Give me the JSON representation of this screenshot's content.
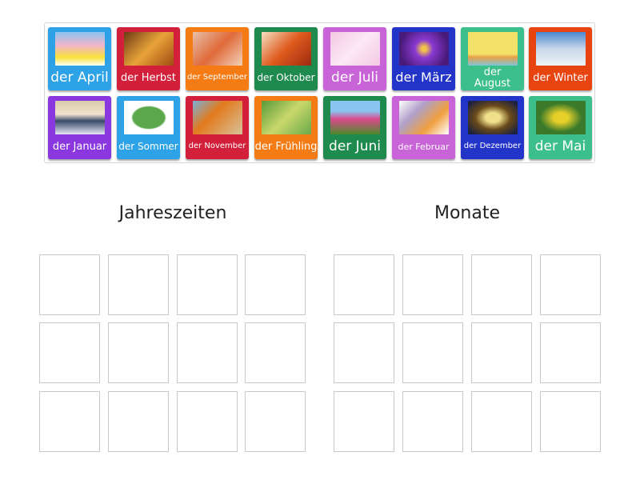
{
  "cards": [
    {
      "label": "der April",
      "color": "#2da2e6",
      "size": 17,
      "img": "linear-gradient(#8bc3f0 0%,#f2b6c9 40%,#f7e23a 75%,#fff 100%)"
    },
    {
      "label": "der Herbst",
      "color": "#d21f3a",
      "size": 13,
      "img": "linear-gradient(135deg,#6b3a12,#e8a33a,#a14a12)"
    },
    {
      "label": "der September",
      "color": "#f57c14",
      "size": 10,
      "img": "linear-gradient(135deg,#e8c0a8,#e06a3a,#f2d2b8)"
    },
    {
      "label": "der Oktober",
      "color": "#1f8a4d",
      "size": 12,
      "img": "linear-gradient(135deg,#f3e0c0,#e05a1e,#9a2a10)"
    },
    {
      "label": "der Juli",
      "color": "#c963d8",
      "size": 17,
      "img": "linear-gradient(135deg,#f3c7e3,#fbe9f4,#f3c7e3)"
    },
    {
      "label": "der März",
      "color": "#2334c9",
      "size": 16,
      "img": "radial-gradient(circle,#f3c24a 8%,#8a3ad0 30%,#4a1a7a 80%)"
    },
    {
      "label": "der\nAugust",
      "color": "#3dbf8c",
      "size": 13,
      "img": "linear-gradient(#f4e16a 65%,#e8a04a 75%,#7cc6d8 100%)"
    },
    {
      "label": "der Winter",
      "color": "#e84410",
      "size": 13,
      "img": "linear-gradient(#4a88d0 0%,#c8d8ea 50%,#eef3f8 100%)"
    },
    {
      "label": "der Januar",
      "color": "#8a37e0",
      "size": 13,
      "img": "linear-gradient(#d8c9a8,#f0e4d0 40%,#3a4a6a 60%,#e6e8f6 100%)"
    },
    {
      "label": "der Sommer",
      "color": "#2da2e6",
      "size": 12,
      "img": "radial-gradient(#5aa84a 45%,#fff 50%)"
    },
    {
      "label": "der November",
      "color": "#d21f3a",
      "size": 10,
      "img": "linear-gradient(135deg,#7ab0d8,#e27a1e 40%,#d8c29a 100%)"
    },
    {
      "label": "der Frühling",
      "color": "#f57c14",
      "size": 13,
      "img": "linear-gradient(135deg,#5a9a3a,#c8d86a,#6aa84a)"
    },
    {
      "label": "der Juni",
      "color": "#1f8a4d",
      "size": 17,
      "img": "linear-gradient(#8ac4f0 30%,#d84a8a 55%,#4a8a2a 100%)"
    },
    {
      "label": "der Februar",
      "color": "#c963d8",
      "size": 11,
      "img": "linear-gradient(135deg,#fff,#b0a0c8,#f0a040,#fff)"
    },
    {
      "label": "der Dezember",
      "color": "#2334c9",
      "size": 10,
      "img": "radial-gradient(#f0e08a 20%,#6a4a1a 50%,#1a2040 90%)"
    },
    {
      "label": "der Mai",
      "color": "#3dbf8c",
      "size": 17,
      "img": "radial-gradient(#e8d02a 20%,#3a7a2a 60%)"
    }
  ],
  "groups": [
    {
      "title": "Jahreszeiten"
    },
    {
      "title": "Monate"
    }
  ]
}
